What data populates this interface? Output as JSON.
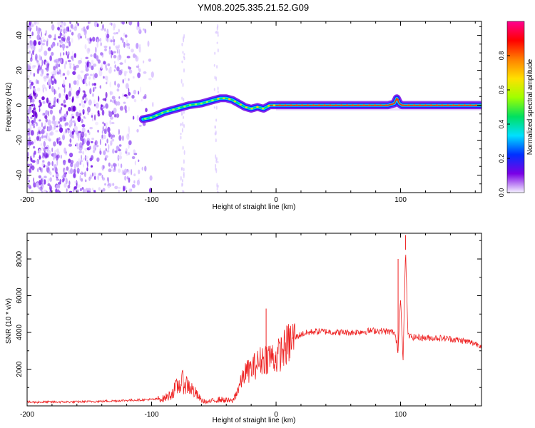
{
  "title": "YM08.2025.335.21.52.G09",
  "chart_data": [
    {
      "type": "heatmap",
      "xlabel": "Height of straight line (km)",
      "ylabel": "Frequency (Hz)",
      "xlim": [
        -200,
        165
      ],
      "ylim": [
        -50,
        48
      ],
      "xticks": [
        -200,
        -100,
        0,
        100
      ],
      "yticks": [
        -40,
        -20,
        0,
        20,
        40
      ],
      "colorbar": {
        "label": "Normalized spectral amplitude",
        "range": [
          0,
          1
        ],
        "ticks": [
          "0.0",
          "0.2",
          "0.4",
          "0.6",
          "0.8"
        ],
        "tick_values": [
          0,
          0.2,
          0.4,
          0.6,
          0.8
        ],
        "colors": [
          "#f4f0ff",
          "#7a00e6",
          "#0030ff",
          "#00e0ff",
          "#00e060",
          "#a0ff00",
          "#ffe000",
          "#ff8000",
          "#ff0000",
          "#ff0090"
        ]
      },
      "ridge": {
        "x": [
          -107,
          -100,
          -90,
          -80,
          -70,
          -60,
          -50,
          -45,
          -40,
          -35,
          -30,
          -25,
          -20,
          -15,
          -10,
          -5,
          0,
          10,
          30,
          60,
          90,
          95,
          97,
          99,
          101,
          110,
          140,
          165
        ],
        "freq": [
          -8,
          -7,
          -4,
          -2,
          0,
          1,
          3,
          4,
          4,
          3,
          1,
          -1,
          -2,
          -1,
          -2,
          0,
          0,
          0,
          0,
          0,
          0,
          1,
          4,
          1,
          0,
          0,
          0,
          0
        ]
      },
      "noise_region": {
        "x_from": -200,
        "x_to": -95
      }
    },
    {
      "type": "line",
      "xlabel": "Height of straight line (km)",
      "ylabel": "SNR (10 * v/v)",
      "xlim": [
        -200,
        165
      ],
      "ylim": [
        0,
        9400
      ],
      "xticks": [
        -200,
        -100,
        0,
        100
      ],
      "yticks": [
        2000,
        4000,
        6000,
        8000
      ],
      "color": "#ee2222",
      "series": [
        {
          "name": "SNR",
          "x": [
            -200,
            -180,
            -160,
            -140,
            -120,
            -100,
            -90,
            -85,
            -80,
            -75,
            -70,
            -65,
            -60,
            -55,
            -50,
            -45,
            -40,
            -35,
            -30,
            -25,
            -20,
            -15,
            -10,
            -5,
            0,
            5,
            10,
            15,
            20,
            30,
            40,
            50,
            60,
            70,
            80,
            90,
            95,
            98,
            100,
            102,
            104,
            106,
            110,
            120,
            130,
            140,
            150,
            160,
            165
          ],
          "y": [
            200,
            210,
            220,
            250,
            300,
            350,
            400,
            600,
            1000,
            1300,
            1100,
            700,
            300,
            200,
            300,
            350,
            300,
            250,
            1000,
            1800,
            2000,
            2300,
            2600,
            2700,
            2600,
            3000,
            3400,
            3700,
            3900,
            4050,
            4050,
            4000,
            4000,
            4050,
            4100,
            4050,
            4000,
            3000,
            6000,
            2500,
            8500,
            3800,
            3750,
            3700,
            3700,
            3650,
            3550,
            3400,
            3300
          ]
        }
      ],
      "spikes": [
        {
          "x": -8,
          "y": 5300
        },
        {
          "x": 98,
          "y": 8000
        },
        {
          "x": 104,
          "y": 9300
        }
      ]
    }
  ]
}
